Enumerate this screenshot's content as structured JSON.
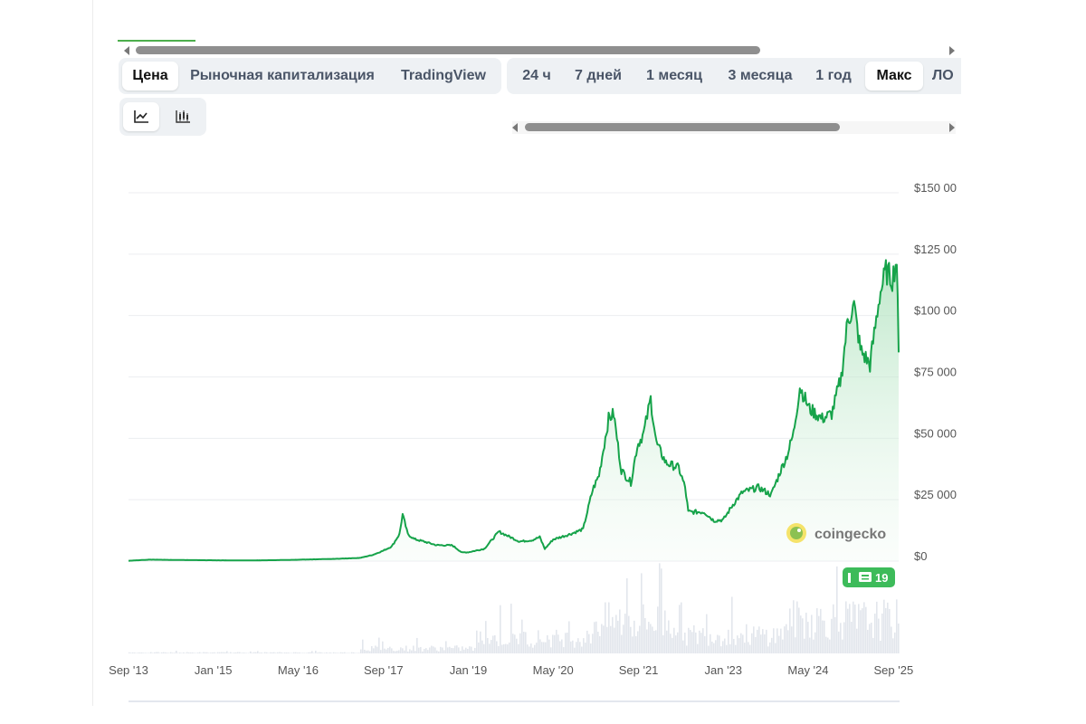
{
  "header_tabs": {
    "price": "Цена",
    "market_cap": "Рыночная капитализация",
    "tradingview": "TradingView"
  },
  "range_tabs": [
    "24 ч",
    "7 дней",
    "1 месяц",
    "3 месяца",
    "1 год",
    "Макс",
    "ЛО"
  ],
  "range_tabs_active": "Макс",
  "chart_type_buttons": [
    "line-chart-icon",
    "candlestick-icon"
  ],
  "brand": "coingecko",
  "badge_text": "19",
  "colors": {
    "line": "#16a34a",
    "area_top": "#a8e0b8",
    "badge": "#3dbb5a",
    "volume": "#e3e7ee"
  },
  "chart_data": {
    "type": "line",
    "y_unit": "$",
    "y_ticks": [
      "$150 00",
      "$125 00",
      "$100 00",
      "$75 000",
      "$50 000",
      "$25 000",
      "$0"
    ],
    "ylim": [
      0,
      150000
    ],
    "x_tick_labels": [
      "Sep '13",
      "Jan '15",
      "May '16",
      "Sep '17",
      "Jan '19",
      "May '20",
      "Sep '21",
      "Jan '23",
      "May '24",
      "Sep '25"
    ],
    "x_tick_years": [
      2013.67,
      2015.0,
      2016.33,
      2017.67,
      2019.0,
      2020.33,
      2021.67,
      2023.0,
      2024.33,
      2025.67
    ],
    "xlim": [
      2013.67,
      2025.75
    ],
    "grid": true,
    "series": [
      {
        "points": [
          [
            2013.67,
            130
          ],
          [
            2014.0,
            600
          ],
          [
            2014.3,
            500
          ],
          [
            2014.9,
            350
          ],
          [
            2015.5,
            250
          ],
          [
            2016.0,
            400
          ],
          [
            2016.5,
            650
          ],
          [
            2016.9,
            900
          ],
          [
            2017.3,
            1300
          ],
          [
            2017.5,
            2500
          ],
          [
            2017.67,
            4300
          ],
          [
            2017.8,
            6000
          ],
          [
            2017.92,
            11000
          ],
          [
            2017.97,
            19000
          ],
          [
            2018.05,
            11000
          ],
          [
            2018.15,
            9000
          ],
          [
            2018.3,
            8000
          ],
          [
            2018.5,
            6500
          ],
          [
            2018.75,
            6400
          ],
          [
            2018.9,
            3500
          ],
          [
            2019.0,
            3600
          ],
          [
            2019.25,
            5000
          ],
          [
            2019.48,
            12000
          ],
          [
            2019.6,
            10500
          ],
          [
            2019.8,
            8000
          ],
          [
            2020.0,
            8500
          ],
          [
            2020.12,
            9800
          ],
          [
            2020.2,
            5000
          ],
          [
            2020.33,
            8800
          ],
          [
            2020.6,
            11000
          ],
          [
            2020.8,
            13000
          ],
          [
            2020.95,
            29000
          ],
          [
            2021.05,
            35000
          ],
          [
            2021.2,
            58000
          ],
          [
            2021.28,
            60000
          ],
          [
            2021.4,
            37000
          ],
          [
            2021.55,
            32000
          ],
          [
            2021.65,
            47000
          ],
          [
            2021.75,
            52000
          ],
          [
            2021.86,
            66000
          ],
          [
            2021.95,
            48000
          ],
          [
            2022.1,
            40000
          ],
          [
            2022.3,
            38000
          ],
          [
            2022.4,
            30000
          ],
          [
            2022.45,
            20000
          ],
          [
            2022.7,
            20000
          ],
          [
            2022.85,
            16500
          ],
          [
            2023.0,
            16800
          ],
          [
            2023.15,
            23000
          ],
          [
            2023.3,
            28000
          ],
          [
            2023.55,
            30000
          ],
          [
            2023.75,
            27000
          ],
          [
            2023.9,
            37000
          ],
          [
            2024.0,
            43000
          ],
          [
            2024.1,
            52000
          ],
          [
            2024.2,
            71000
          ],
          [
            2024.35,
            62000
          ],
          [
            2024.55,
            58000
          ],
          [
            2024.7,
            60000
          ],
          [
            2024.85,
            75000
          ],
          [
            2024.95,
            98000
          ],
          [
            2025.05,
            104000
          ],
          [
            2025.15,
            86000
          ],
          [
            2025.3,
            80000
          ],
          [
            2025.45,
            108000
          ],
          [
            2025.55,
            118000
          ],
          [
            2025.65,
            115000
          ],
          [
            2025.72,
            123000
          ],
          [
            2025.75,
            85000
          ]
        ]
      }
    ]
  }
}
